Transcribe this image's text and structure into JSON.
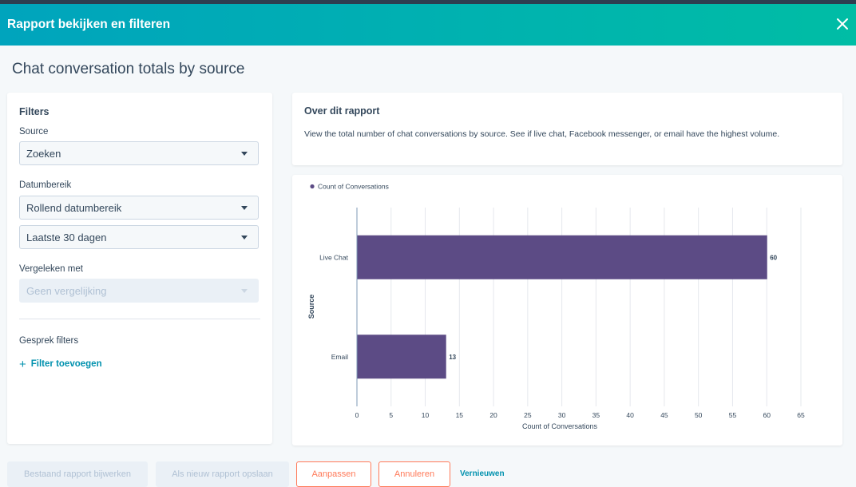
{
  "modal": {
    "title": "Rapport bekijken en filteren"
  },
  "report": {
    "title": "Chat conversation totals by source"
  },
  "filters": {
    "heading": "Filters",
    "source_label": "Source",
    "source_value": "Zoeken",
    "date_label": "Datumbereik",
    "date_type_value": "Rollend datumbereik",
    "date_range_value": "Laatste 30 dagen",
    "compare_label": "Vergeleken met",
    "compare_value": "Geen vergelijking",
    "conversation_filters_label": "Gesprek filters",
    "add_filter_label": "Filter toevoegen"
  },
  "about": {
    "heading": "Over dit rapport",
    "description": "View the total number of chat conversations by source. See if live chat, Facebook messenger, or email have the highest volume."
  },
  "chart_data": {
    "type": "bar",
    "orientation": "horizontal",
    "categories": [
      "Live Chat",
      "Email"
    ],
    "series": [
      {
        "name": "Count of Conversations",
        "values": [
          60,
          13
        ],
        "color": "#5c4b85"
      }
    ],
    "data_labels": [
      "60",
      "13"
    ],
    "xlabel": "Count of Conversations",
    "ylabel": "Source",
    "xlim": [
      0,
      65
    ],
    "xticks": [
      0,
      5,
      10,
      15,
      20,
      25,
      30,
      35,
      40,
      45,
      50,
      55,
      60,
      65
    ],
    "grid": true,
    "legend_position": "top-left"
  },
  "footer": {
    "update_existing_label": "Bestaand rapport bijwerken",
    "save_new_label": "Als nieuw rapport opslaan",
    "customize_label": "Aanpassen",
    "cancel_label": "Annuleren",
    "refresh_label": "Vernieuwen"
  },
  "colors": {
    "header_start": "#00a4bd",
    "header_end": "#00bda5",
    "bar": "#5c4b85",
    "accent_orange": "#ff7a59",
    "link": "#0091ae"
  }
}
